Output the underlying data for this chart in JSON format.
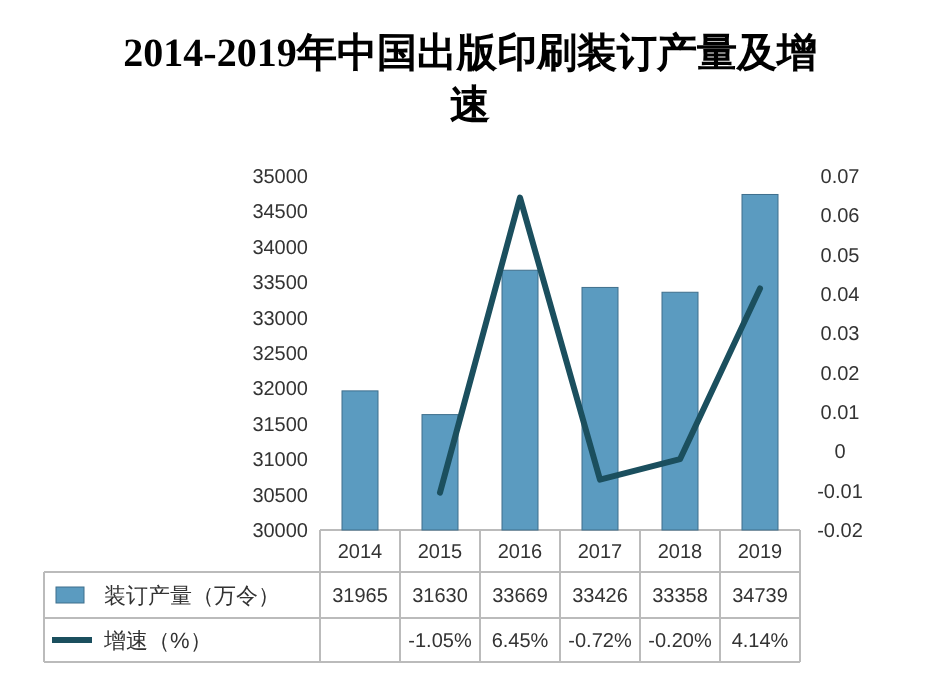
{
  "chart_data": {
    "type": "bar",
    "title": "2014-2019年中国出版印刷装订产量及增速",
    "categories": [
      "2014",
      "2015",
      "2016",
      "2017",
      "2018",
      "2019"
    ],
    "series": [
      {
        "name": "装订产量（万令）",
        "color": "#5b9bc0",
        "values": [
          31965,
          31630,
          33669,
          33426,
          33358,
          34739
        ],
        "value_labels": [
          "31965",
          "31630",
          "33669",
          "33426",
          "33358",
          "34739"
        ]
      },
      {
        "name": "增速（%）",
        "type": "line",
        "axis": "y2",
        "color": "#1b4f5e",
        "values": [
          null,
          -0.0105,
          0.0645,
          -0.0072,
          -0.002,
          0.0414
        ],
        "value_labels": [
          null,
          "-1.05%",
          "6.45%",
          "-0.72%",
          "-0.20%",
          "4.14%"
        ]
      }
    ],
    "ylim": [
      30000,
      35000
    ],
    "yticks": [
      30000,
      30500,
      31000,
      31500,
      32000,
      32500,
      33000,
      33500,
      34000,
      34500,
      35000
    ],
    "y2lim": [
      -0.02,
      0.07
    ],
    "y2ticks": [
      -0.02,
      -0.01,
      0,
      0.01,
      0.02,
      0.03,
      0.04,
      0.05,
      0.06,
      0.07
    ],
    "legend": "bottom"
  }
}
